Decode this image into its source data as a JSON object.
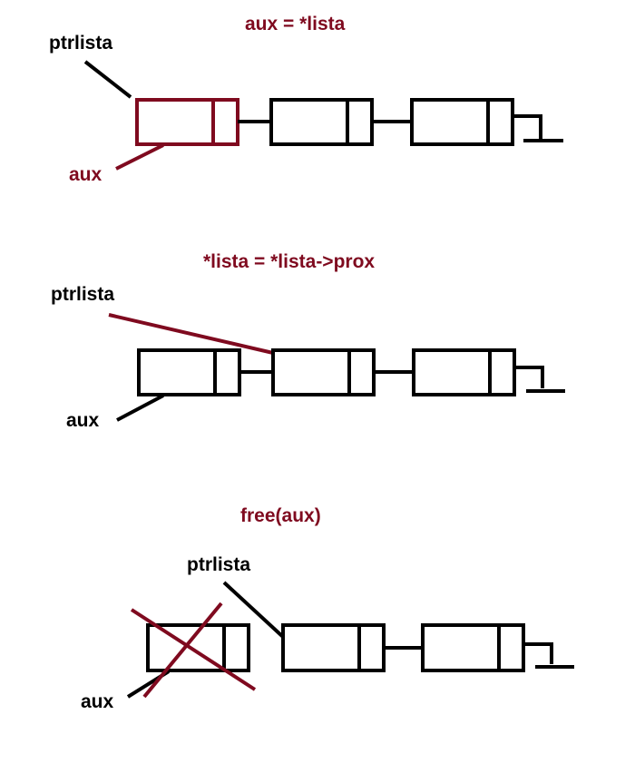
{
  "colors": {
    "accent": "#7f0a1f",
    "ink": "#000000",
    "background": "#ffffff"
  },
  "step1": {
    "title": "aux = *lista",
    "ptr_label": "ptrlista",
    "aux_label": "aux"
  },
  "step2": {
    "title": "*lista = *lista->prox",
    "ptr_label": "ptrlista",
    "aux_label": "aux"
  },
  "step3": {
    "title": "free(aux)",
    "ptr_label": "ptrlista",
    "aux_label": "aux"
  }
}
